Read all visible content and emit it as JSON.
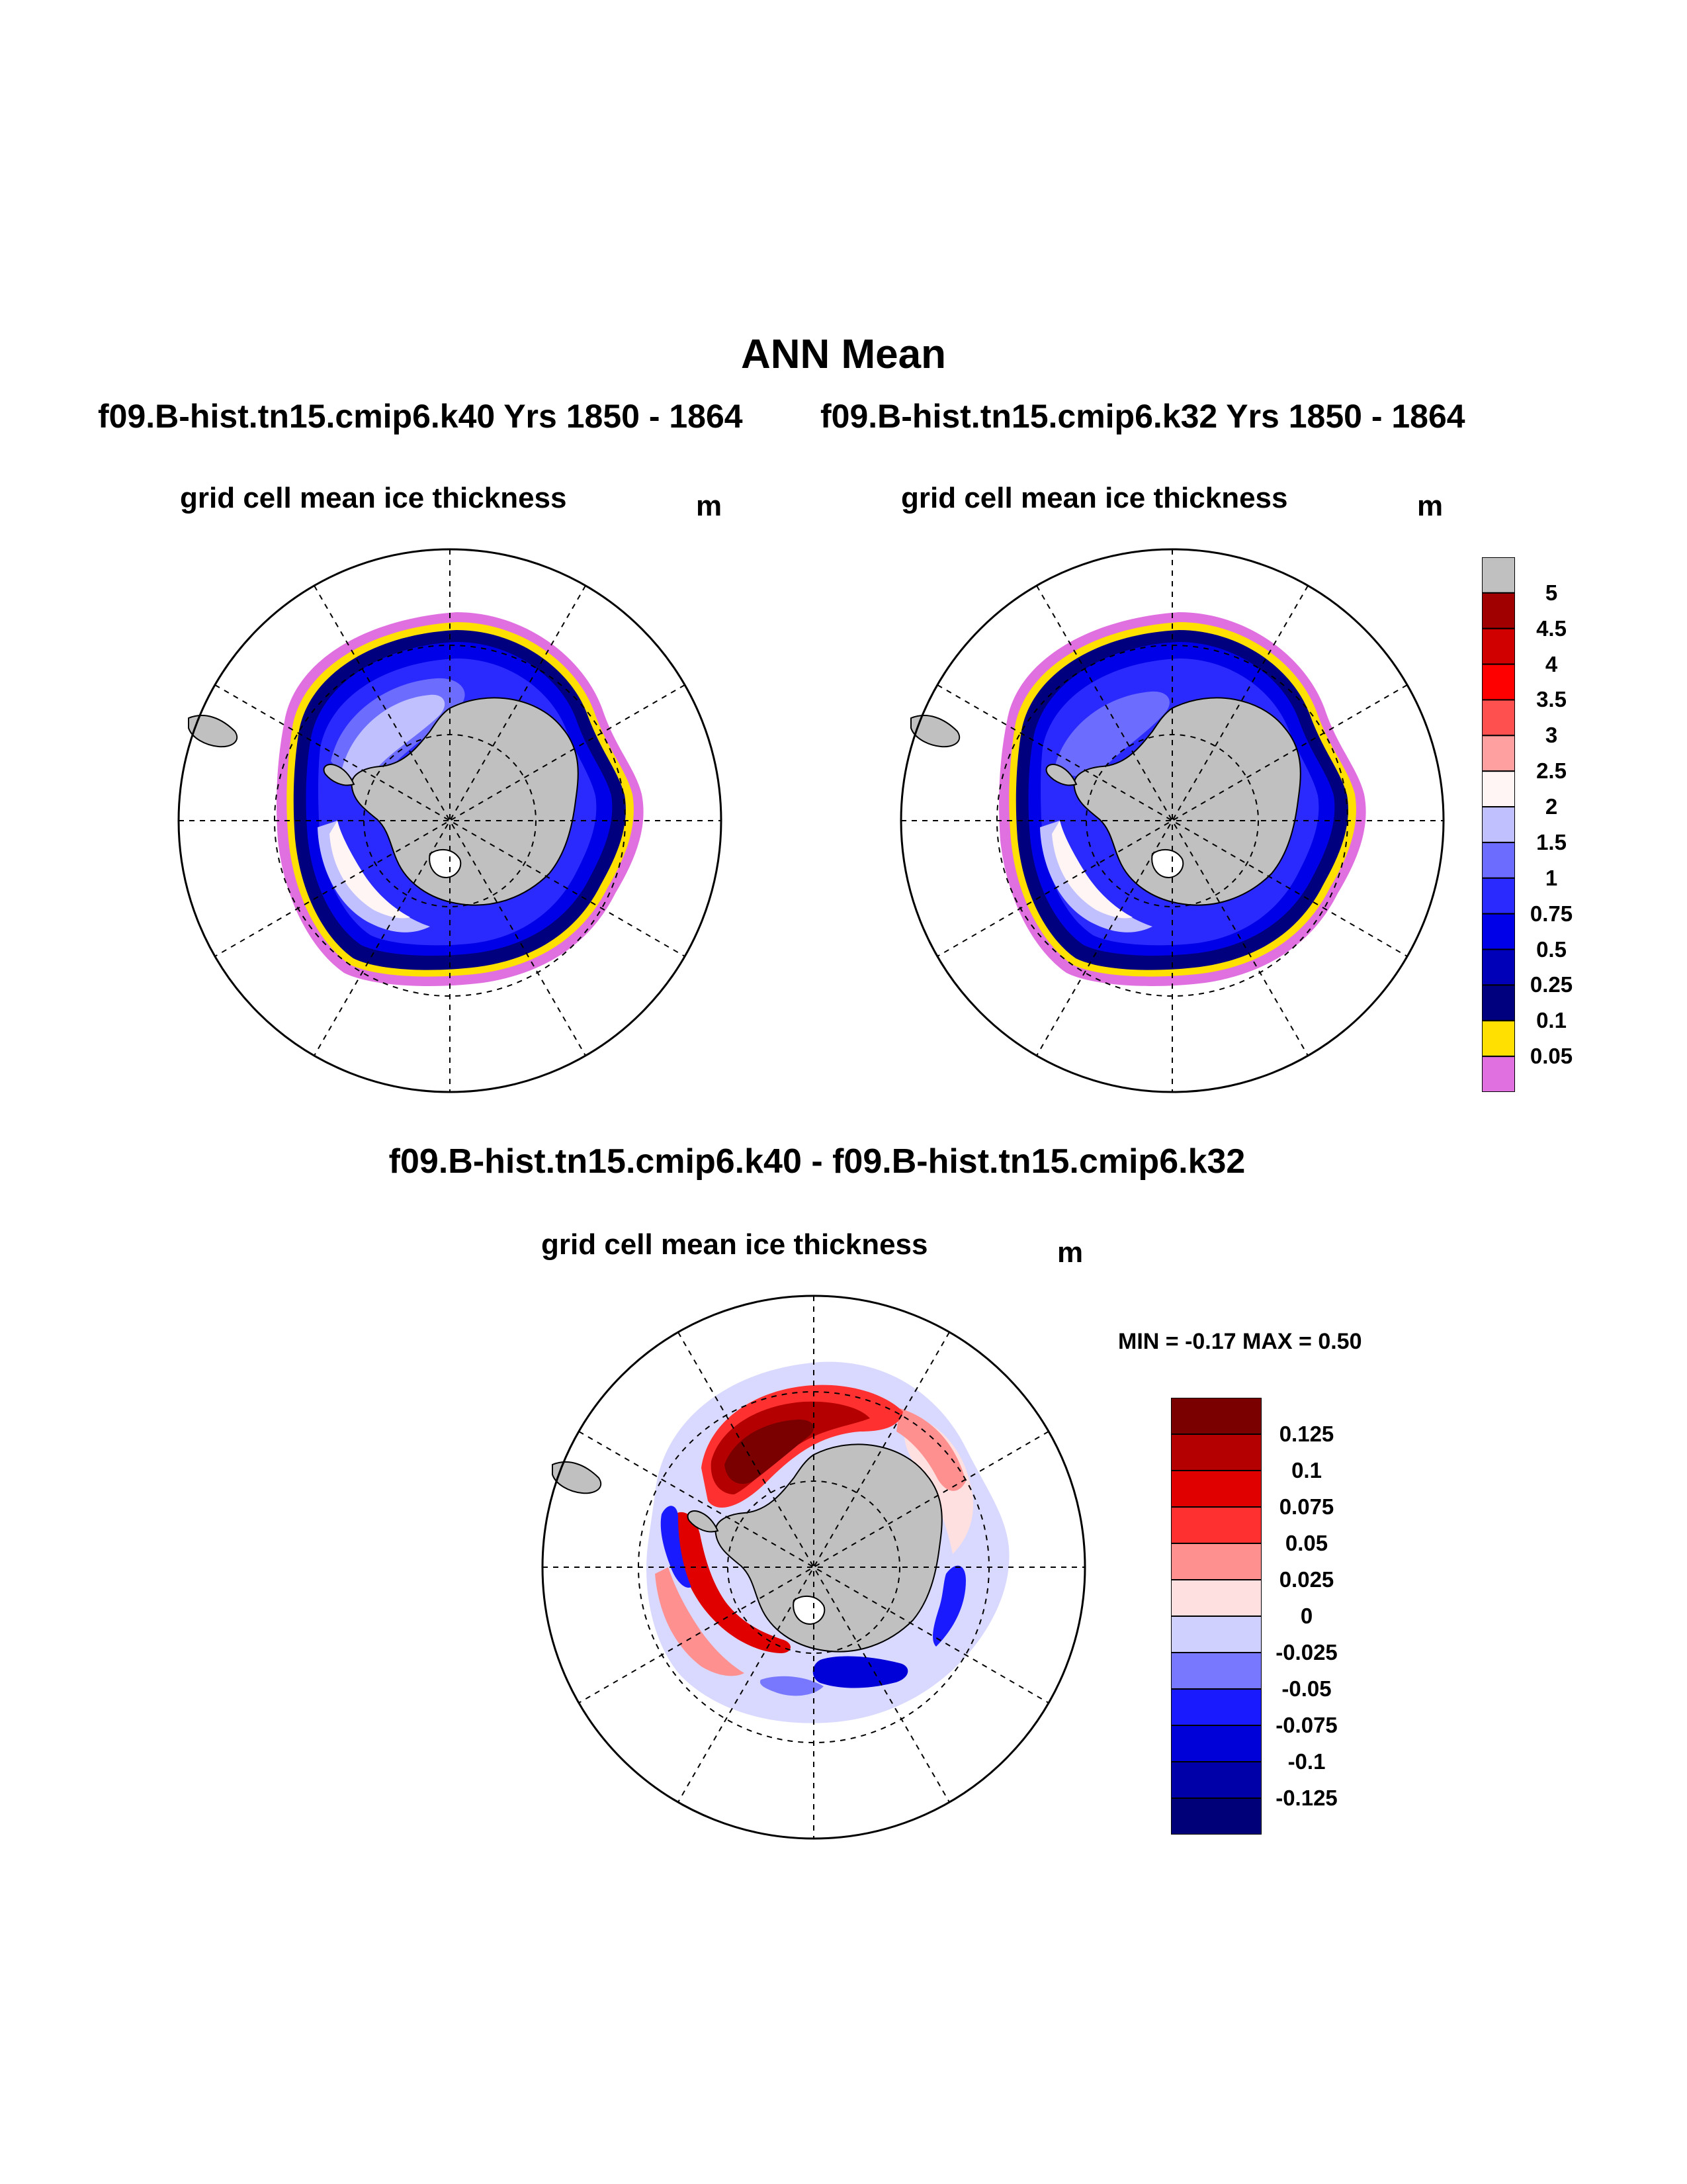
{
  "header": {
    "title": "ANN Mean",
    "case1": "f09.B-hist.tn15.cmip6.k40  Yrs 1850 - 1864",
    "case2": "f09.B-hist.tn15.cmip6.k32  Yrs 1850 - 1864",
    "diff_title": "f09.B-hist.tn15.cmip6.k40 - f09.B-hist.tn15.cmip6.k32"
  },
  "panels": {
    "p1": {
      "title": "grid cell mean ice thickness",
      "unit": "m"
    },
    "p2": {
      "title": "grid cell mean ice thickness",
      "unit": "m"
    },
    "p3": {
      "title": "grid cell mean ice thickness",
      "unit": "m",
      "minmax": "MIN =  -0.17 MAX =   0.50"
    }
  },
  "chart_data": [
    {
      "type": "heatmap",
      "projection": "south-polar-stereographic",
      "title": "grid cell mean ice thickness",
      "unit": "m",
      "case": "f09.B-hist.tn15.cmip6.k40  Yrs 1850 - 1864",
      "colorbar": {
        "labels": [
          "5",
          "4.5",
          "4",
          "3.5",
          "3",
          "2.5",
          "2",
          "1.5",
          "1",
          "0.75",
          "0.5",
          "0.25",
          "0.1",
          "0.05"
        ],
        "colors": [
          "#c0c0c0",
          "#a00000",
          "#d00000",
          "#ff0000",
          "#ff5050",
          "#ffa0a0",
          "#fff5f5",
          "#c0c0ff",
          "#6c6cff",
          "#2a2aff",
          "#0000e8",
          "#0000b8",
          "#00007e",
          "#ffe000",
          "#e070e0"
        ]
      }
    },
    {
      "type": "heatmap",
      "projection": "south-polar-stereographic",
      "title": "grid cell mean ice thickness",
      "unit": "m",
      "case": "f09.B-hist.tn15.cmip6.k32  Yrs 1850 - 1864",
      "colorbar": "shared with first panel"
    },
    {
      "type": "heatmap",
      "projection": "south-polar-stereographic",
      "title": "grid cell mean ice thickness",
      "unit": "m",
      "case": "f09.B-hist.tn15.cmip6.k40 - f09.B-hist.tn15.cmip6.k32",
      "min": -0.17,
      "max": 0.5,
      "colorbar": {
        "labels": [
          "0.125",
          "0.1",
          "0.075",
          "0.05",
          "0.025",
          "0",
          "-0.025",
          "-0.05",
          "-0.075",
          "-0.1",
          "-0.125"
        ],
        "colors": [
          "#7a0000",
          "#b40000",
          "#e00000",
          "#ff3030",
          "#ff9090",
          "#ffe0e0",
          "#d0d0ff",
          "#7878ff",
          "#1a1aff",
          "#0000d8",
          "#0000a8",
          "#000078"
        ]
      }
    }
  ]
}
